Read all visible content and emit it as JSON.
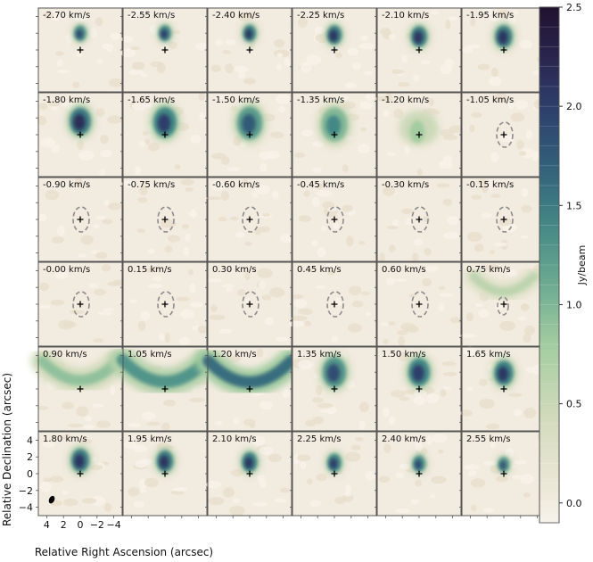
{
  "chart_data": {
    "type": "heatmap",
    "description_units": "channel maps",
    "channels": [
      {
        "label": "-2.70 km/s",
        "velocity": -2.7,
        "peak": 1.9,
        "kind": "core",
        "dy": 2.0,
        "size": 0.55
      },
      {
        "label": "-2.55 km/s",
        "velocity": -2.55,
        "peak": 2.0,
        "kind": "core",
        "dy": 2.0,
        "size": 0.55
      },
      {
        "label": "-2.40 km/s",
        "velocity": -2.4,
        "peak": 2.05,
        "kind": "core",
        "dy": 2.0,
        "size": 0.6
      },
      {
        "label": "-2.25 km/s",
        "velocity": -2.25,
        "peak": 2.1,
        "kind": "core",
        "dy": 1.8,
        "size": 0.75
      },
      {
        "label": "-2.10 km/s",
        "velocity": -2.1,
        "peak": 2.1,
        "kind": "core",
        "dy": 1.6,
        "size": 0.85
      },
      {
        "label": "-1.95 km/s",
        "velocity": -1.95,
        "peak": 2.1,
        "kind": "core",
        "dy": 1.6,
        "size": 0.95
      },
      {
        "label": "-1.80 km/s",
        "velocity": -1.8,
        "peak": 2.15,
        "kind": "core",
        "dy": 1.6,
        "size": 1.25
      },
      {
        "label": "-1.65 km/s",
        "velocity": -1.65,
        "peak": 2.0,
        "kind": "core",
        "dy": 1.5,
        "size": 1.45
      },
      {
        "label": "-1.50 km/s",
        "velocity": -1.5,
        "peak": 1.75,
        "kind": "core",
        "dy": 1.4,
        "size": 1.6
      },
      {
        "label": "-1.35 km/s",
        "velocity": -1.35,
        "peak": 1.4,
        "kind": "core",
        "dy": 1.2,
        "size": 1.7
      },
      {
        "label": "-1.20 km/s",
        "velocity": -1.2,
        "peak": 0.8,
        "kind": "faint",
        "dy": 0.8,
        "size": 1.4
      },
      {
        "label": "-1.05 km/s",
        "velocity": -1.05,
        "peak": 0.0,
        "kind": "contour",
        "dy": 0,
        "size": 1.0
      },
      {
        "label": "-0.90 km/s",
        "velocity": -0.9,
        "peak": 0.0,
        "kind": "contour",
        "dy": 0,
        "size": 1.0
      },
      {
        "label": "-0.75 km/s",
        "velocity": -0.75,
        "peak": 0.0,
        "kind": "contour",
        "dy": 0,
        "size": 1.0
      },
      {
        "label": "-0.60 km/s",
        "velocity": -0.6,
        "peak": 0.0,
        "kind": "contour",
        "dy": 0,
        "size": 1.0
      },
      {
        "label": "-0.45 km/s",
        "velocity": -0.45,
        "peak": 0.0,
        "kind": "contour",
        "dy": 0,
        "size": 1.0
      },
      {
        "label": "-0.30 km/s",
        "velocity": -0.3,
        "peak": 0.0,
        "kind": "contour",
        "dy": 0,
        "size": 1.0
      },
      {
        "label": "-0.15 km/s",
        "velocity": -0.15,
        "peak": 0.0,
        "kind": "contour",
        "dy": 0,
        "size": 1.0
      },
      {
        "label": "-0.00 km/s",
        "velocity": 0.0,
        "peak": 0.0,
        "kind": "contour",
        "dy": 0,
        "size": 1.0
      },
      {
        "label": "0.15 km/s",
        "velocity": 0.15,
        "peak": 0.0,
        "kind": "contour",
        "dy": 0,
        "size": 1.0
      },
      {
        "label": "0.30 km/s",
        "velocity": 0.3,
        "peak": 0.0,
        "kind": "contour",
        "dy": 0,
        "size": 1.0
      },
      {
        "label": "0.45 km/s",
        "velocity": 0.45,
        "peak": 0.0,
        "kind": "contour",
        "dy": 0,
        "size": 1.0
      },
      {
        "label": "0.60 km/s",
        "velocity": 0.6,
        "peak": 0.0,
        "kind": "contour",
        "dy": 0,
        "size": 1.0
      },
      {
        "label": "0.75 km/s",
        "velocity": 0.75,
        "peak": 0.6,
        "kind": "arc",
        "dy": 2.5,
        "size": 1.2
      },
      {
        "label": "0.90 km/s",
        "velocity": 0.9,
        "peak": 0.9,
        "kind": "arc",
        "dy": 2.3,
        "size": 1.5
      },
      {
        "label": "1.05 km/s",
        "velocity": 1.05,
        "peak": 1.3,
        "kind": "arc",
        "dy": 2.3,
        "size": 1.7
      },
      {
        "label": "1.20 km/s",
        "velocity": 1.2,
        "peak": 1.6,
        "kind": "arc",
        "dy": 2.2,
        "size": 1.65
      },
      {
        "label": "1.35 km/s",
        "velocity": 1.35,
        "peak": 1.85,
        "kind": "core",
        "dy": 2.0,
        "size": 1.45
      },
      {
        "label": "1.50 km/s",
        "velocity": 1.5,
        "peak": 2.0,
        "kind": "core",
        "dy": 2.0,
        "size": 1.3
      },
      {
        "label": "1.65 km/s",
        "velocity": 1.65,
        "peak": 2.05,
        "kind": "core",
        "dy": 1.9,
        "size": 1.1
      },
      {
        "label": "1.80 km/s",
        "velocity": 1.8,
        "peak": 2.1,
        "kind": "core",
        "dy": 1.6,
        "size": 1.0
      },
      {
        "label": "1.95 km/s",
        "velocity": 1.95,
        "peak": 2.1,
        "kind": "core",
        "dy": 1.5,
        "size": 0.9
      },
      {
        "label": "2.10 km/s",
        "velocity": 2.1,
        "peak": 2.05,
        "kind": "core",
        "dy": 1.4,
        "size": 0.8
      },
      {
        "label": "2.25 km/s",
        "velocity": 2.25,
        "peak": 2.0,
        "kind": "core",
        "dy": 1.3,
        "size": 0.7
      },
      {
        "label": "2.40 km/s",
        "velocity": 2.4,
        "peak": 1.9,
        "kind": "core",
        "dy": 1.2,
        "size": 0.6
      },
      {
        "label": "2.55 km/s",
        "velocity": 2.55,
        "peak": 1.8,
        "kind": "core",
        "dy": 1.1,
        "size": 0.5
      }
    ],
    "grid": {
      "rows": 6,
      "cols": 6
    },
    "xlabel": "Relative Right Ascension (arcsec)",
    "ylabel": "Relative Declination (arcsec)",
    "x_ticks": [
      "4",
      "2",
      "0",
      "−2",
      "−4"
    ],
    "x_tick_values": [
      4,
      2,
      0,
      -2,
      -4
    ],
    "y_ticks": [
      "4",
      "2",
      "0",
      "−2",
      "−4"
    ],
    "y_tick_values": [
      4,
      2,
      0,
      -2,
      -4
    ],
    "xlim": [
      5,
      -5
    ],
    "ylim": [
      -5,
      5
    ],
    "colorbar": {
      "label": "Jy/beam",
      "range": [
        -0.1,
        2.5
      ],
      "ticks": [
        "0.0",
        "0.5",
        "1.0",
        "1.5",
        "2.0",
        "2.5"
      ],
      "tick_values": [
        0.0,
        0.5,
        1.0,
        1.5,
        2.0,
        2.5
      ]
    },
    "colors": {
      "background": "#f2ebdf",
      "low": "#f5f0e6",
      "mid": "#7ab594",
      "high": "#2b3c68",
      "max": "#26183a",
      "contour": "#8c8c8c"
    }
  }
}
